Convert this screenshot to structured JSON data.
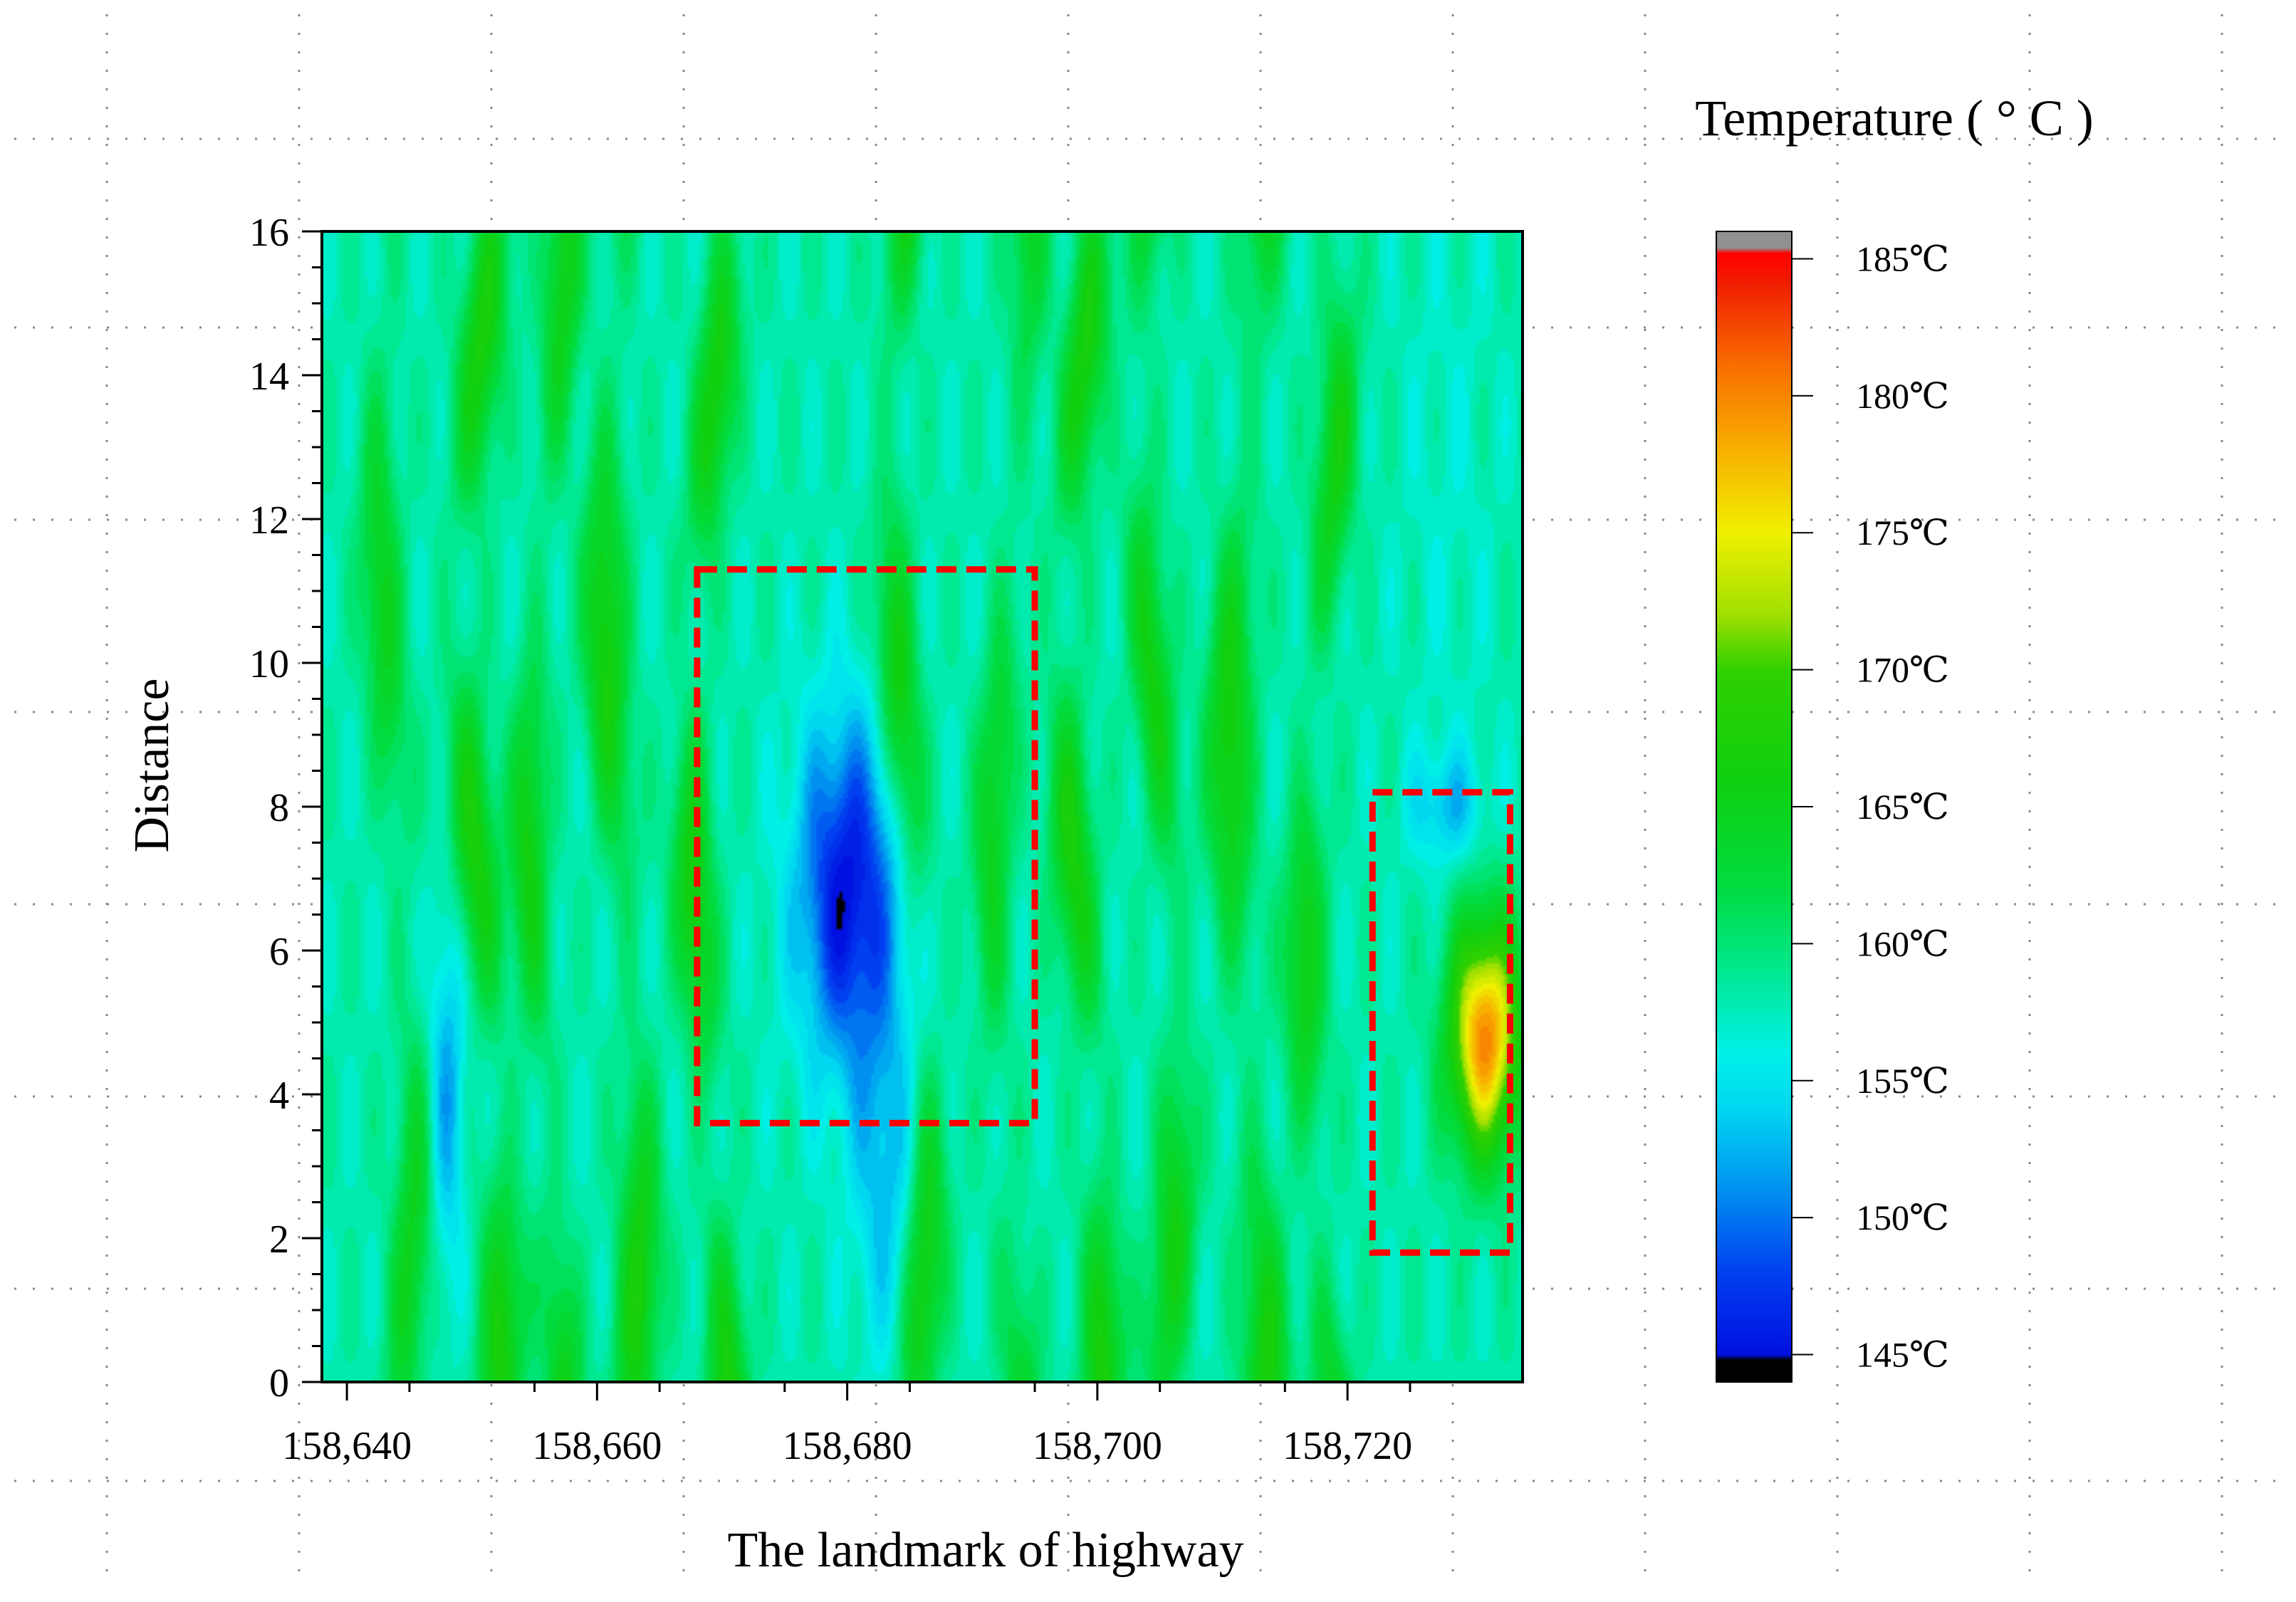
{
  "chart_data": {
    "type": "heatmap",
    "title": "",
    "xlabel": "The landmark of highway",
    "ylabel": "Distance",
    "xlim": [
      158638,
      158734
    ],
    "ylim": [
      0,
      16
    ],
    "x_ticks": [
      158640,
      158660,
      158680,
      158700,
      158720
    ],
    "x_tick_labels": [
      "158,640",
      "158,660",
      "158,680",
      "158,700",
      "158,720"
    ],
    "y_ticks": [
      0,
      2,
      4,
      6,
      8,
      10,
      12,
      14,
      16
    ],
    "y_tick_labels": [
      "0",
      "2",
      "4",
      "6",
      "8",
      "10",
      "12",
      "14",
      "16"
    ],
    "grid": true,
    "colorbar": {
      "title": "Temperature ( ° C )",
      "min": 144,
      "max": 186,
      "ticks": [
        185,
        180,
        175,
        170,
        165,
        160,
        155,
        150,
        145
      ],
      "tick_labels": [
        "185℃",
        "180℃",
        "175℃",
        "170℃",
        "165℃",
        "160℃",
        "155℃",
        "150℃",
        "145℃"
      ],
      "stops": [
        {
          "value": 144,
          "color": "#000000"
        },
        {
          "value": 144.8,
          "color": "#000000"
        },
        {
          "value": 145,
          "color": "#0010e0"
        },
        {
          "value": 148,
          "color": "#0040f0"
        },
        {
          "value": 151,
          "color": "#0090f0"
        },
        {
          "value": 154,
          "color": "#00d8f0"
        },
        {
          "value": 156,
          "color": "#00f0e8"
        },
        {
          "value": 159,
          "color": "#00e890"
        },
        {
          "value": 162,
          "color": "#00dc40"
        },
        {
          "value": 166,
          "color": "#10d010"
        },
        {
          "value": 170,
          "color": "#30d000"
        },
        {
          "value": 172,
          "color": "#a0e000"
        },
        {
          "value": 175,
          "color": "#f0f000"
        },
        {
          "value": 178,
          "color": "#f8b000"
        },
        {
          "value": 181,
          "color": "#f87000"
        },
        {
          "value": 184,
          "color": "#f02000"
        },
        {
          "value": 185.2,
          "color": "#ff0000"
        },
        {
          "value": 185.4,
          "color": "#909090"
        },
        {
          "value": 186,
          "color": "#909090"
        }
      ]
    },
    "highlight_regions": [
      {
        "x": [
          158668,
          158695
        ],
        "y": [
          3.6,
          11.3
        ],
        "color": "#ff0000"
      },
      {
        "x": [
          158722,
          158733
        ],
        "y": [
          1.8,
          8.2
        ],
        "color": "#ff0000"
      }
    ],
    "blob_field": {
      "base": 158,
      "stripes": [
        {
          "x": 158644,
          "width": 1.6,
          "amp": 7,
          "period": 9,
          "phase": 0.3
        },
        {
          "x": 158651,
          "width": 1.8,
          "amp": 9,
          "period": 7,
          "phase": 1.1
        },
        {
          "x": 158656,
          "width": 1.5,
          "amp": 8,
          "period": 8,
          "phase": 2.0
        },
        {
          "x": 158662,
          "width": 1.7,
          "amp": 9,
          "period": 9,
          "phase": 0.7
        },
        {
          "x": 158669,
          "width": 1.6,
          "amp": 9,
          "period": 7,
          "phase": 1.8
        },
        {
          "x": 158685,
          "width": 1.6,
          "amp": 9,
          "period": 8,
          "phase": 0.4
        },
        {
          "x": 158693,
          "width": 1.5,
          "amp": 7,
          "period": 9,
          "phase": 2.4
        },
        {
          "x": 158699,
          "width": 1.7,
          "amp": 9,
          "period": 7,
          "phase": 1.3
        },
        {
          "x": 158705,
          "width": 1.6,
          "amp": 8,
          "period": 8,
          "phase": 0.1
        },
        {
          "x": 158712,
          "width": 1.8,
          "amp": 9,
          "period": 9,
          "phase": 1.6
        },
        {
          "x": 158718,
          "width": 1.6,
          "amp": 8,
          "period": 7,
          "phase": 2.6
        }
      ],
      "cold": [
        {
          "x": 158648,
          "y": 4.0,
          "sx": 1.4,
          "sy": 2.6,
          "amp": -6
        },
        {
          "x": 158680,
          "y": 6.8,
          "sx": 4.0,
          "sy": 2.4,
          "amp": -13
        },
        {
          "x": 158683,
          "y": 3.0,
          "sx": 2.6,
          "sy": 2.6,
          "amp": -5
        },
        {
          "x": 158728,
          "y": 8.0,
          "sx": 3.0,
          "sy": 0.8,
          "amp": -5
        },
        {
          "x": 158728,
          "y": 12.5,
          "sx": 4.0,
          "sy": 4.5,
          "amp": -1
        }
      ],
      "hot": [
        {
          "x": 158731,
          "y": 4.8,
          "sx": 2.8,
          "sy": 1.6,
          "amp": 22
        }
      ]
    }
  }
}
